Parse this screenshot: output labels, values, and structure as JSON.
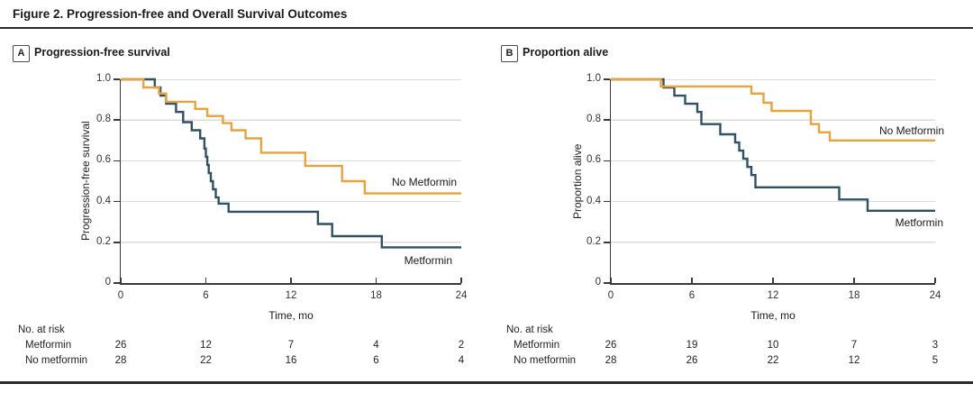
{
  "figure": {
    "title": "Figure 2. Progression-free and Overall Survival Outcomes"
  },
  "colors": {
    "metformin": "#2E5264",
    "no_metformin": "#E8A33C",
    "grid": "#DBDBDB",
    "axis": "#3A3A3A",
    "rule": "#2B2B2B"
  },
  "risk_header": "No. at risk",
  "xlabel": "Time, mo",
  "chart_data": [
    {
      "type": "line",
      "panel_letter": "A",
      "panel_title": "Progression-free survival",
      "ylabel": "Progression-free survival",
      "xlabel": "Time, mo",
      "xlim": [
        0,
        24
      ],
      "ylim": [
        0,
        1
      ],
      "xticks": [
        0,
        6,
        12,
        18,
        24
      ],
      "ytick_labels": [
        "1.0",
        "0.8",
        "0.6",
        "0.4",
        "0.2",
        "0"
      ],
      "ytick_values": [
        1.0,
        0.8,
        0.6,
        0.4,
        0.2,
        0
      ],
      "grid": true,
      "legend_position": "end-of-line labels",
      "series": [
        {
          "name": "Metformin",
          "color": "#2E5264",
          "steps": [
            [
              0,
              1.0
            ],
            [
              2.4,
              0.96
            ],
            [
              2.8,
              0.92
            ],
            [
              3.2,
              0.88
            ],
            [
              3.9,
              0.84
            ],
            [
              4.4,
              0.79
            ],
            [
              5.0,
              0.75
            ],
            [
              5.6,
              0.71
            ],
            [
              5.9,
              0.66
            ],
            [
              6.0,
              0.62
            ],
            [
              6.1,
              0.58
            ],
            [
              6.2,
              0.54
            ],
            [
              6.35,
              0.5
            ],
            [
              6.5,
              0.46
            ],
            [
              6.7,
              0.42
            ],
            [
              6.9,
              0.39
            ],
            [
              7.6,
              0.35
            ],
            [
              13.9,
              0.29
            ],
            [
              14.9,
              0.23
            ],
            [
              18.4,
              0.175
            ],
            [
              24,
              0.175
            ]
          ]
        },
        {
          "name": "No Metformin",
          "color": "#E8A33C",
          "steps": [
            [
              0,
              1.0
            ],
            [
              1.6,
              0.96
            ],
            [
              2.7,
              0.93
            ],
            [
              3.2,
              0.89
            ],
            [
              5.25,
              0.855
            ],
            [
              6.1,
              0.82
            ],
            [
              7.2,
              0.785
            ],
            [
              7.8,
              0.75
            ],
            [
              8.8,
              0.71
            ],
            [
              9.9,
              0.64
            ],
            [
              13,
              0.575
            ],
            [
              15.6,
              0.5
            ],
            [
              17.2,
              0.44
            ],
            [
              24,
              0.44
            ]
          ]
        }
      ],
      "risk_table": {
        "header": "No. at risk",
        "times": [
          0,
          6,
          12,
          18,
          24
        ],
        "rows": [
          {
            "label": "Metformin",
            "values": [
              26,
              12,
              7,
              4,
              2
            ]
          },
          {
            "label": "No metformin",
            "values": [
              28,
              22,
              16,
              6,
              4
            ]
          }
        ]
      }
    },
    {
      "type": "line",
      "panel_letter": "B",
      "panel_title": "Proportion alive",
      "ylabel": "Proportion alive",
      "xlabel": "Time, mo",
      "xlim": [
        0,
        24
      ],
      "ylim": [
        0,
        1
      ],
      "xticks": [
        0,
        6,
        12,
        18,
        24
      ],
      "ytick_labels": [
        "1.0",
        "0.8",
        "0.6",
        "0.4",
        "0.2",
        "0"
      ],
      "ytick_values": [
        1.0,
        0.8,
        0.6,
        0.4,
        0.2,
        0
      ],
      "grid": true,
      "legend_position": "end-of-line labels",
      "series": [
        {
          "name": "Metformin",
          "color": "#2E5264",
          "steps": [
            [
              0,
              1.0
            ],
            [
              3.9,
              0.96
            ],
            [
              4.7,
              0.92
            ],
            [
              5.5,
              0.88
            ],
            [
              6.4,
              0.84
            ],
            [
              6.7,
              0.78
            ],
            [
              8.1,
              0.73
            ],
            [
              9.2,
              0.69
            ],
            [
              9.5,
              0.65
            ],
            [
              9.8,
              0.61
            ],
            [
              10.1,
              0.57
            ],
            [
              10.4,
              0.53
            ],
            [
              10.7,
              0.47
            ],
            [
              16.9,
              0.41
            ],
            [
              19.0,
              0.355
            ],
            [
              24,
              0.355
            ]
          ]
        },
        {
          "name": "No Metformin",
          "color": "#E8A33C",
          "steps": [
            [
              0,
              1.0
            ],
            [
              3.7,
              0.965
            ],
            [
              10.4,
              0.93
            ],
            [
              11.3,
              0.885
            ],
            [
              11.9,
              0.845
            ],
            [
              14.8,
              0.78
            ],
            [
              15.4,
              0.74
            ],
            [
              16.2,
              0.7
            ],
            [
              24,
              0.7
            ]
          ]
        }
      ],
      "risk_table": {
        "header": "No. at risk",
        "times": [
          0,
          6,
          12,
          18,
          24
        ],
        "rows": [
          {
            "label": "Metformin",
            "values": [
              26,
              19,
              10,
              7,
              3
            ]
          },
          {
            "label": "No metformin",
            "values": [
              28,
              26,
              22,
              12,
              5
            ]
          }
        ]
      }
    }
  ]
}
